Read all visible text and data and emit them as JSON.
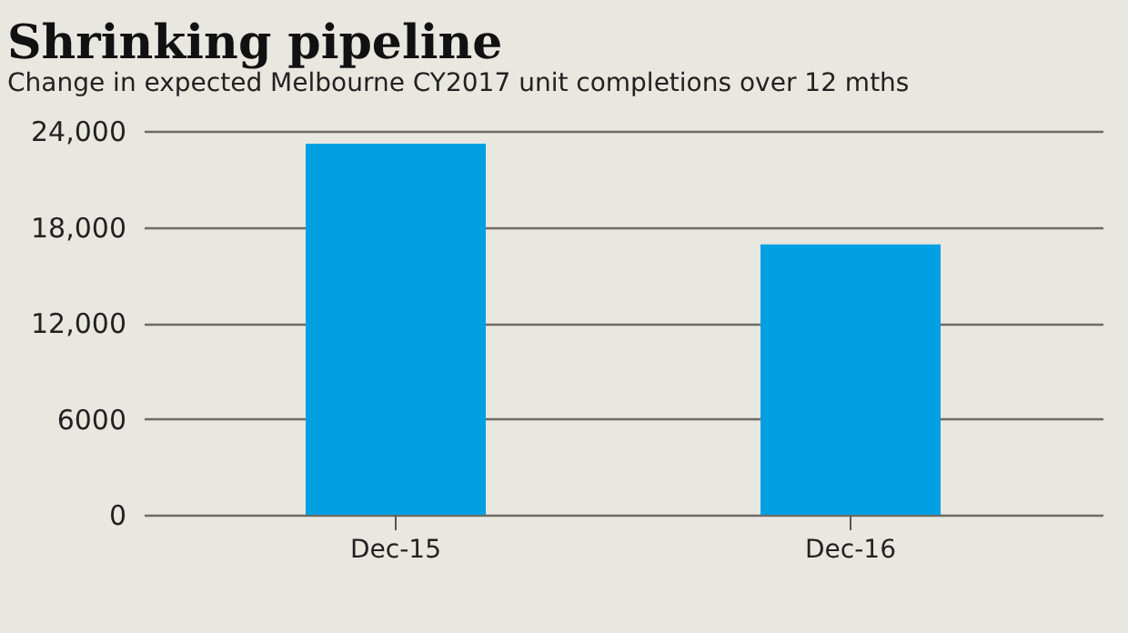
{
  "chart_data": {
    "type": "bar",
    "title": "Shrinking pipeline",
    "subtitle": "Change in expected Melbourne CY2017 unit completions over 12 mths",
    "categories": [
      "Dec-15",
      "Dec-16"
    ],
    "values": [
      23200,
      16900
    ],
    "color": "#00a0e2",
    "ylim": [
      0,
      24000
    ],
    "yticks": [
      0,
      {
        "value": 6000,
        "label": "6000"
      },
      {
        "value": 12000,
        "label": "12,000"
      },
      {
        "value": 18000,
        "label": "18,000"
      },
      {
        "value": 24000,
        "label": "24,000"
      }
    ],
    "grid": "y"
  }
}
